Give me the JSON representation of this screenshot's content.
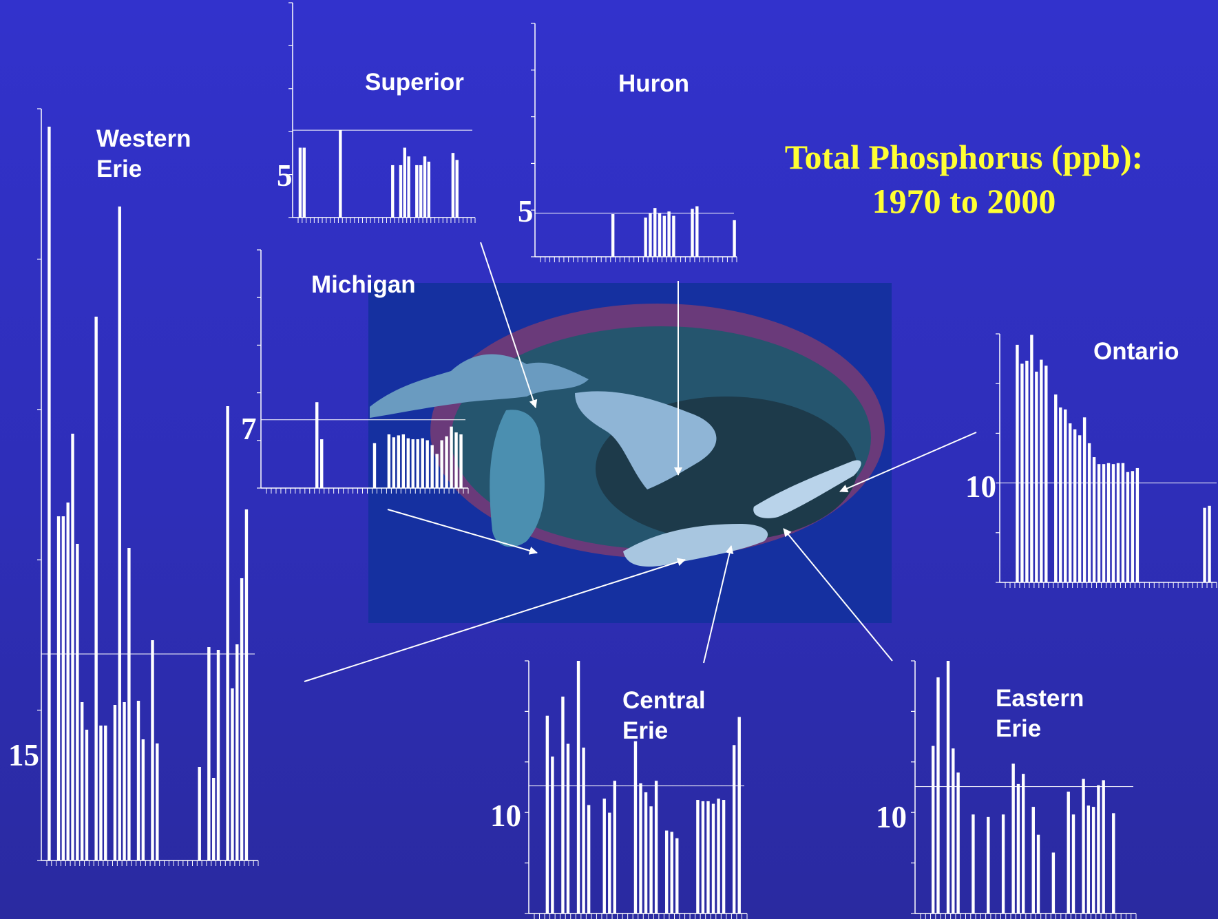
{
  "title": {
    "line1": "Total Phosphorus (ppb):",
    "line2": "1970 to 2000"
  },
  "colors": {
    "text_title": "#ffff33",
    "bars": "#ffffff",
    "map_water": "#8fb5d6",
    "map_bg": "#1530a0"
  },
  "chart_data": [
    {
      "type": "bar",
      "name": "Superior",
      "reference_label": "5",
      "reference_value": 5,
      "ylim": [
        0,
        12.3
      ],
      "values": [
        4.0,
        4.0,
        0,
        0,
        0,
        0,
        0,
        0,
        0,
        0,
        5.0,
        0,
        0,
        0,
        0,
        0,
        0,
        0,
        0,
        0,
        0,
        0,
        0,
        3.0,
        0,
        3.0,
        4.0,
        3.5,
        0,
        3.0,
        3.0,
        3.5,
        3.2,
        0,
        0,
        0,
        0,
        0,
        3.7,
        3.3,
        0,
        0,
        0,
        0
      ]
    },
    {
      "type": "bar",
      "name": "Huron",
      "reference_label": "5",
      "reference_value": 5,
      "ylim": [
        0,
        26.8
      ],
      "values": [
        0,
        0,
        0,
        0,
        0,
        0,
        0,
        0,
        0,
        0,
        0,
        0,
        0,
        0,
        0,
        4.9,
        0,
        0,
        0,
        0,
        0,
        0,
        4.5,
        5.0,
        5.6,
        5.0,
        4.7,
        5.2,
        4.7,
        0,
        0,
        0,
        5.5,
        5.8,
        0,
        0,
        0,
        0,
        0,
        0,
        0,
        4.2
      ]
    },
    {
      "type": "bar",
      "name": "Michigan",
      "reference_label": "7",
      "reference_value": 7,
      "ylim": [
        0,
        24.4
      ],
      "values": [
        0,
        0,
        0,
        0,
        0,
        0,
        0,
        0,
        0,
        0,
        8.8,
        5.0,
        0,
        0,
        0,
        0,
        0,
        0,
        0,
        0,
        0,
        0,
        4.6,
        0,
        0,
        5.5,
        5.2,
        5.4,
        5.5,
        5.1,
        5.0,
        5.0,
        5.1,
        4.9,
        4.4,
        3.5,
        4.9,
        5.3,
        6.3,
        5.7,
        5.5,
        0
      ]
    },
    {
      "type": "bar",
      "name": "Western Erie",
      "reference_label": "15",
      "reference_value": 15,
      "ylim": [
        0,
        54.6
      ],
      "values": [
        53.3,
        0,
        25.0,
        25.0,
        26.0,
        31.0,
        23.0,
        11.5,
        9.5,
        0,
        39.5,
        9.8,
        9.8,
        0,
        11.3,
        47.5,
        11.5,
        22.7,
        0,
        11.6,
        8.8,
        0,
        16.0,
        8.5,
        0,
        0,
        0,
        0,
        0,
        0,
        0,
        0,
        6.8,
        0,
        15.5,
        6.0,
        15.3,
        0,
        33.0,
        12.5,
        15.7,
        20.5,
        25.5,
        0,
        0
      ]
    },
    {
      "type": "bar",
      "name": "Ontario",
      "reference_label": "10",
      "reference_value": 10,
      "ylim": [
        0,
        25.0
      ],
      "values": [
        0,
        0,
        23.9,
        22.0,
        22.3,
        24.9,
        21.2,
        22.4,
        21.8,
        0,
        18.9,
        17.6,
        17.4,
        16.0,
        15.4,
        14.8,
        16.6,
        14.0,
        12.6,
        11.9,
        11.9,
        12.0,
        11.9,
        12.0,
        12.0,
        11.1,
        11.2,
        11.5,
        0,
        0,
        0,
        0,
        0,
        0,
        0,
        0,
        0,
        0,
        0,
        0,
        0,
        7.5,
        7.7,
        0
      ]
    },
    {
      "type": "bar",
      "name": "Central Erie",
      "reference_label": "10",
      "reference_value": 10,
      "ylim": [
        0,
        19.8
      ],
      "values": [
        0,
        0,
        15.5,
        12.3,
        0,
        17.0,
        13.3,
        0,
        19.8,
        13.0,
        8.5,
        0,
        0,
        9.0,
        7.9,
        10.4,
        0,
        0,
        0,
        13.5,
        10.2,
        9.5,
        8.4,
        10.4,
        0,
        6.5,
        6.4,
        5.9,
        0,
        0,
        0,
        8.9,
        8.8,
        8.8,
        8.6,
        9.0,
        8.9,
        0,
        13.2,
        15.4,
        0
      ]
    },
    {
      "type": "bar",
      "name": "Eastern Erie",
      "reference_label": "10",
      "reference_value": 10,
      "ylim": [
        0,
        19.9
      ],
      "values": [
        0,
        0,
        13.2,
        18.6,
        0,
        19.9,
        13.0,
        11.1,
        0,
        0,
        7.8,
        0,
        0,
        7.6,
        0,
        0,
        7.8,
        0,
        11.8,
        10.2,
        11.0,
        0,
        8.4,
        6.2,
        0,
        0,
        4.8,
        0,
        0,
        9.6,
        7.8,
        0,
        10.6,
        8.5,
        8.4,
        10.1,
        10.5,
        0,
        7.9,
        0,
        0,
        0,
        0
      ]
    }
  ]
}
